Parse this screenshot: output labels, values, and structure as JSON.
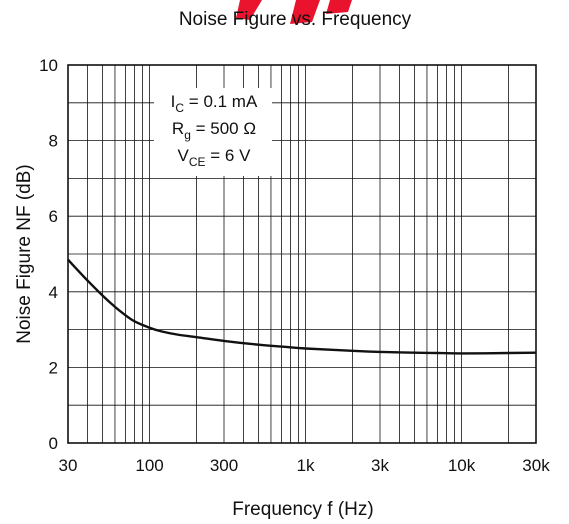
{
  "colors": {
    "curve": "#111111",
    "grid": "#111111",
    "watermark": "#e8001c",
    "background": "#ffffff"
  },
  "chart_data": {
    "type": "line",
    "title": "Noise Figure vs. Frequency",
    "xlabel": "Frequency f (Hz)",
    "ylabel": "Noise Figure NF (dB)",
    "x_scale": "log",
    "xlim": [
      30,
      30000
    ],
    "ylim": [
      0,
      10
    ],
    "grid": true,
    "x_ticks": [
      {
        "value": 30,
        "label": "30"
      },
      {
        "value": 100,
        "label": "100"
      },
      {
        "value": 300,
        "label": "300"
      },
      {
        "value": 1000,
        "label": "1k"
      },
      {
        "value": 3000,
        "label": "3k"
      },
      {
        "value": 10000,
        "label": "10k"
      },
      {
        "value": 30000,
        "label": "30k"
      }
    ],
    "y_ticks": [
      {
        "value": 0,
        "label": "0"
      },
      {
        "value": 2,
        "label": "2"
      },
      {
        "value": 4,
        "label": "4"
      },
      {
        "value": 6,
        "label": "6"
      },
      {
        "value": 8,
        "label": "8"
      },
      {
        "value": 10,
        "label": "10"
      }
    ],
    "annotation": {
      "lines": [
        {
          "main": "I",
          "sub": "C",
          "rest": " = 0.1 mA"
        },
        {
          "main": "R",
          "sub": "g",
          "rest": " = 500 Ω"
        },
        {
          "main": "V",
          "sub": "CE",
          "rest": " = 6 V"
        }
      ]
    },
    "series": [
      {
        "x": [
          30,
          40,
          50,
          60,
          70,
          80,
          100,
          120,
          150,
          200,
          300,
          500,
          700,
          1000,
          2000,
          3000,
          5000,
          7000,
          10000,
          20000,
          30000
        ],
        "y": [
          4.85,
          4.3,
          3.9,
          3.6,
          3.38,
          3.22,
          3.05,
          2.95,
          2.87,
          2.8,
          2.7,
          2.6,
          2.55,
          2.5,
          2.44,
          2.41,
          2.39,
          2.38,
          2.37,
          2.38,
          2.39
        ]
      }
    ]
  }
}
